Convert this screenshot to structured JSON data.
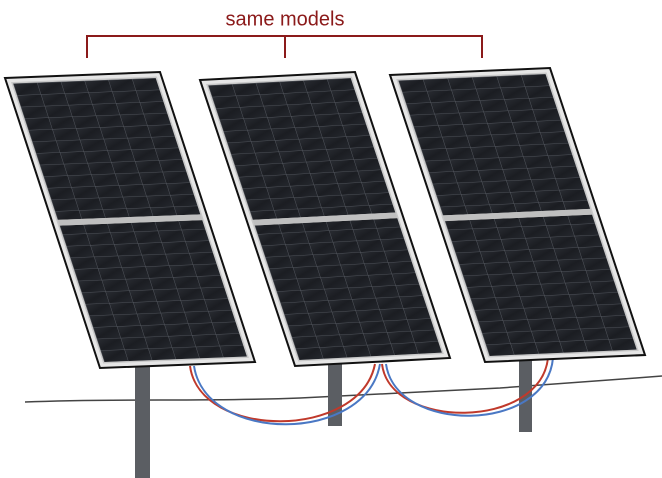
{
  "label": "same models"
}
